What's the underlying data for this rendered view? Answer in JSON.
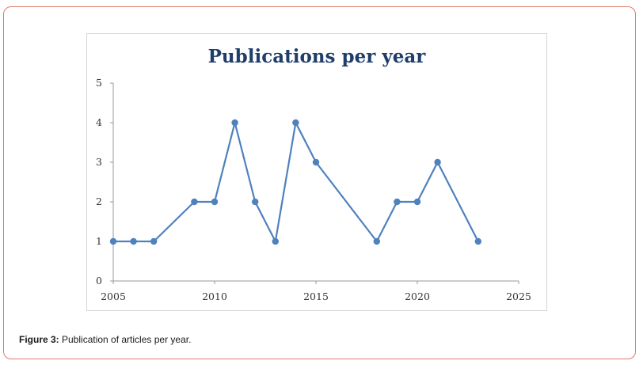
{
  "caption": {
    "label": "Figure 3:",
    "text": " Publication of articles per year."
  },
  "chart_data": {
    "type": "line",
    "title": "Publications per year",
    "xlabel": "",
    "ylabel": "",
    "xlim": [
      2005,
      2025
    ],
    "ylim": [
      0,
      5
    ],
    "xticks": [
      2005,
      2010,
      2015,
      2020,
      2025
    ],
    "yticks": [
      0,
      1,
      2,
      3,
      4,
      5
    ],
    "grid": false,
    "legend": "none",
    "series": [
      {
        "color": "#4f81bd",
        "x": [
          2005,
          2006,
          2007,
          2009,
          2010,
          2011,
          2012,
          2013,
          2014,
          2015,
          2018,
          2019,
          2020,
          2021,
          2023
        ],
        "y": [
          1,
          1,
          1,
          2,
          2,
          4,
          2,
          1,
          4,
          3,
          1,
          2,
          2,
          3,
          1
        ]
      }
    ]
  }
}
